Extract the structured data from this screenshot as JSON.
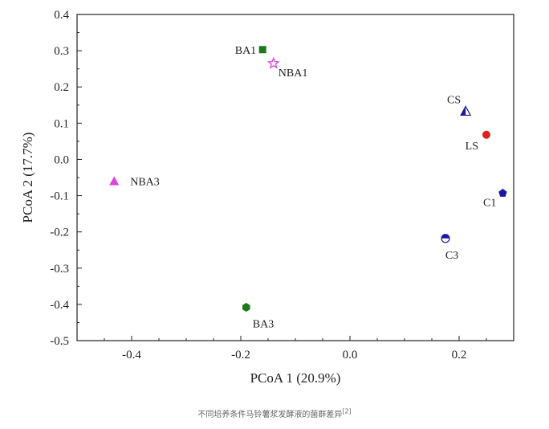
{
  "chart_data": {
    "type": "scatter",
    "xlabel": "PCoA 1 (20.9%)",
    "ylabel": "PCoA 2 (17.7%)",
    "xlim": [
      -0.5,
      0.3
    ],
    "ylim": [
      -0.5,
      0.4
    ],
    "xticks": [
      -0.4,
      -0.2,
      0.0,
      0.2
    ],
    "xtick_labels": [
      "-0.4",
      "-0.2",
      "0.0",
      "0.2"
    ],
    "yticks": [
      0.4,
      0.3,
      0.2,
      0.1,
      0.0,
      -0.1,
      -0.2,
      -0.3,
      -0.4,
      -0.5
    ],
    "ytick_labels": [
      "0.4",
      "0.3",
      "0.2",
      "0.1",
      "0.0",
      "-0.1",
      "-0.2",
      "-0.3",
      "-0.4",
      "-0.5"
    ],
    "grid": false,
    "points": [
      {
        "label": "BA1",
        "x": -0.16,
        "y": 0.303,
        "marker": "square",
        "color": "#1a7a1a"
      },
      {
        "label": "NBA1",
        "x": -0.14,
        "y": 0.265,
        "marker": "star",
        "color": "#e040e0"
      },
      {
        "label": "NBA3",
        "x": -0.432,
        "y": -0.06,
        "marker": "triangle",
        "color": "#e040e0"
      },
      {
        "label": "BA3",
        "x": -0.19,
        "y": -0.408,
        "marker": "hexagon",
        "color": "#1a7a1a"
      },
      {
        "label": "CS",
        "x": 0.212,
        "y": 0.133,
        "marker": "half-triangle",
        "color": "#1a1a9a"
      },
      {
        "label": "LS",
        "x": 0.25,
        "y": 0.068,
        "marker": "circle",
        "color": "#e02020"
      },
      {
        "label": "C1",
        "x": 0.28,
        "y": -0.093,
        "marker": "pentagon",
        "color": "#1a1aa0"
      },
      {
        "label": "C3",
        "x": 0.175,
        "y": -0.218,
        "marker": "half-circle",
        "color": "#1a1aa0"
      }
    ]
  },
  "caption": {
    "text": "不同培养条件马铃薯浆发酵液的菌群差异",
    "ref": "[2]"
  }
}
